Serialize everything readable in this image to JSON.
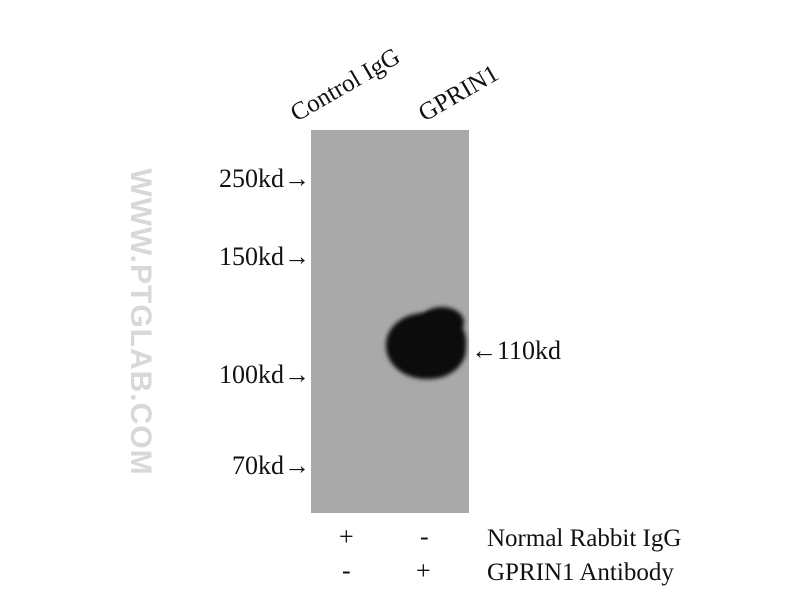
{
  "watermark": "WWW.PTGLAB.COM",
  "lanes": [
    "Control IgG",
    "GPRIN1"
  ],
  "markers": [
    "250kd→",
    "150kd→",
    "100kd→",
    "70kd→"
  ],
  "target_label": "←110kd",
  "conditions": [
    {
      "label": "Normal Rabbit IgG",
      "signs": [
        "+",
        "-"
      ]
    },
    {
      "label": "GPRIN1 Antibody",
      "signs": [
        "-",
        "+"
      ]
    }
  ],
  "colors": {
    "membrane": "#a9a9a9",
    "band": "#0c0c0c"
  }
}
